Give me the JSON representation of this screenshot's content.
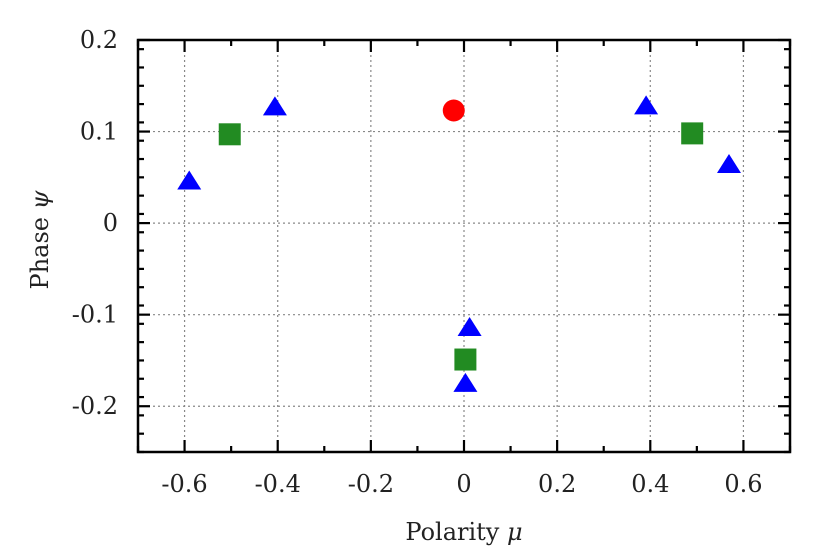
{
  "chart_data": {
    "type": "scatter",
    "title": "",
    "xlabel": "Polarity μ",
    "ylabel": "Phase ψ",
    "xlabel_text": "Polarity",
    "xlabel_symbol": "μ",
    "ylabel_text": "Phase",
    "ylabel_symbol": "ψ",
    "xlim": [
      -0.7,
      0.7
    ],
    "ylim": [
      -0.25,
      0.2
    ],
    "grid": true,
    "legend": null,
    "xticks": [
      -0.6,
      -0.4,
      -0.2,
      0,
      0.2,
      0.4,
      0.6
    ],
    "xtick_labels": [
      "-0.6",
      "-0.4",
      "-0.2",
      "0",
      "0.2",
      "0.4",
      "0.6"
    ],
    "xminor_step": 0.1,
    "yticks": [
      -0.2,
      -0.1,
      0,
      0.1,
      0.2
    ],
    "ytick_labels": [
      "-0.2",
      "-0.1",
      "0",
      "0.1",
      "0.2"
    ],
    "yminor_step": 0.02,
    "series": [
      {
        "name": "triangles",
        "marker": "triangle",
        "color": "#0000FF",
        "points": [
          {
            "x": -0.59,
            "y": 0.045
          },
          {
            "x": -0.406,
            "y": 0.126
          },
          {
            "x": 0.012,
            "y": -0.115
          },
          {
            "x": 0.003,
            "y": -0.176
          },
          {
            "x": 0.391,
            "y": 0.127
          },
          {
            "x": 0.569,
            "y": 0.063
          }
        ]
      },
      {
        "name": "squares",
        "marker": "square",
        "color": "#228B22",
        "points": [
          {
            "x": -0.503,
            "y": 0.097
          },
          {
            "x": 0.003,
            "y": -0.149
          },
          {
            "x": 0.49,
            "y": 0.098
          }
        ]
      },
      {
        "name": "circle",
        "marker": "circle",
        "color": "#FF0000",
        "points": [
          {
            "x": -0.022,
            "y": 0.123
          }
        ]
      }
    ]
  }
}
